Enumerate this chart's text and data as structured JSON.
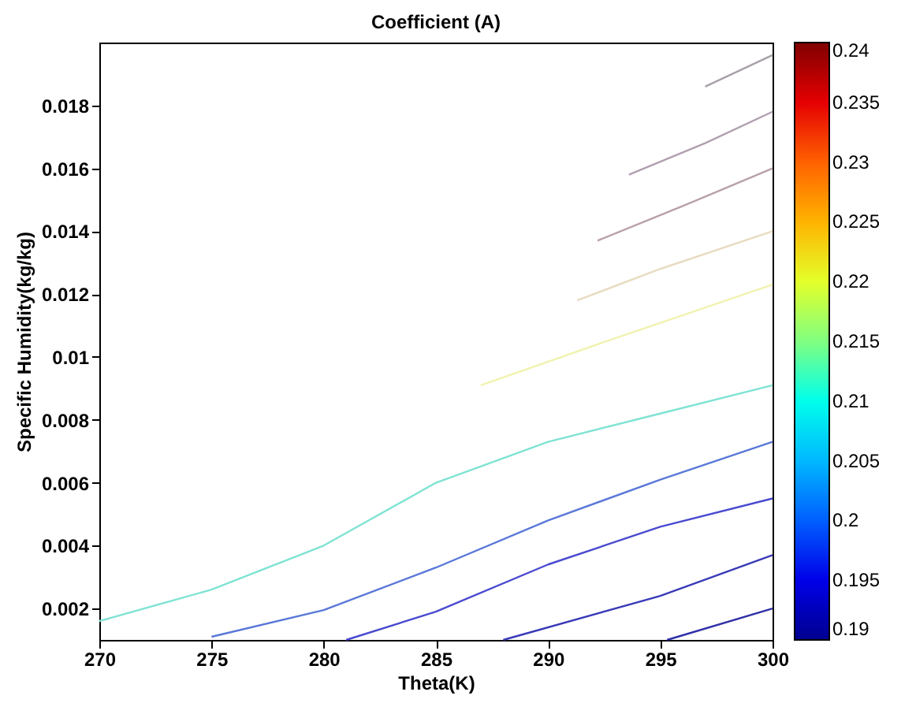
{
  "chart_data": {
    "type": "line",
    "title": "Coefficient (A)",
    "xlabel": "Theta(K)",
    "ylabel": "Specific Humidity(kg/kg)",
    "xlim": [
      270,
      300
    ],
    "xticks": [
      270,
      275,
      280,
      285,
      290,
      295,
      300
    ],
    "ylim": [
      0.001,
      0.02
    ],
    "yticks": [
      0.002,
      0.004,
      0.006,
      0.008,
      0.01,
      0.012,
      0.014,
      0.016,
      0.018
    ],
    "clim": [
      0.19,
      0.24
    ],
    "cticks": [
      0.19,
      0.195,
      0.2,
      0.205,
      0.21,
      0.215,
      0.22,
      0.225,
      0.23,
      0.235,
      0.24
    ],
    "grid": false,
    "line_style": "solid",
    "marker": "none",
    "series": [
      {
        "color": "#7fe3d3",
        "x": [
          270,
          275,
          280,
          285,
          290,
          295,
          300
        ],
        "values": [
          0.0016,
          0.0026,
          0.004,
          0.006,
          0.0073,
          0.0082,
          0.0091
        ]
      },
      {
        "color": "#5a78d8",
        "x": [
          275,
          280,
          285,
          290,
          295,
          300
        ],
        "values": [
          0.0011,
          0.00195,
          0.0033,
          0.0048,
          0.0061,
          0.0073
        ]
      },
      {
        "color": "#4a4ad0",
        "x": [
          281,
          285,
          290,
          295,
          300
        ],
        "values": [
          0.001,
          0.0019,
          0.0034,
          0.0046,
          0.0055
        ]
      },
      {
        "color": "#3a3ab8",
        "x": [
          288,
          295,
          300
        ],
        "values": [
          0.001,
          0.0024,
          0.0037
        ]
      },
      {
        "color": "#3030a8",
        "x": [
          295.3,
          300
        ],
        "values": [
          0.001,
          0.002
        ]
      },
      {
        "color": "#f2f2b0",
        "x": [
          287,
          293,
          300
        ],
        "values": [
          0.0091,
          0.0106,
          0.0123
        ]
      },
      {
        "color": "#e8dcc0",
        "x": [
          291.3,
          295,
          300
        ],
        "values": [
          0.0118,
          0.0128,
          0.014
        ]
      },
      {
        "color": "#b8a0a8",
        "x": [
          292.2,
          296,
          300
        ],
        "values": [
          0.0137,
          0.0148,
          0.016
        ]
      },
      {
        "color": "#b0a0b0",
        "x": [
          293.6,
          297,
          300
        ],
        "values": [
          0.0158,
          0.0168,
          0.0178
        ]
      },
      {
        "color": "#a8a0a8",
        "x": [
          297,
          300
        ],
        "values": [
          0.0186,
          0.0196
        ]
      }
    ]
  }
}
